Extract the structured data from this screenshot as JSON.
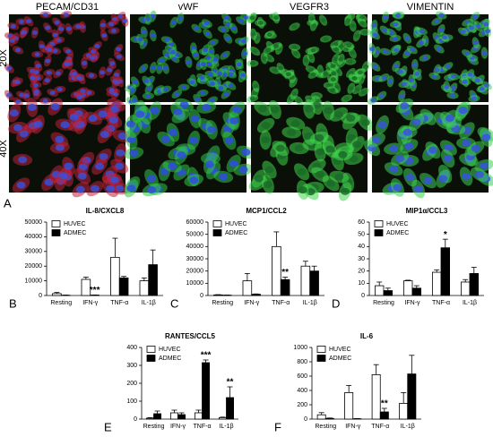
{
  "panel_a": {
    "letter": "A",
    "columns": [
      "PECAM/CD31",
      "vWF",
      "VEGFR3",
      "VIMENTIN"
    ],
    "rows": [
      "20X",
      "40X"
    ]
  },
  "chart_data": [
    {
      "type": "bar",
      "panel": "B",
      "title": "IL-8/CXCL8",
      "categories": [
        "Resting",
        "IFN-γ",
        "TNF-α",
        "IL-1β"
      ],
      "series": [
        {
          "name": "HUVEC",
          "color": "#ffffff",
          "values": [
            1300,
            11000,
            26000,
            10000
          ],
          "errors": [
            800,
            1500,
            13000,
            2000
          ]
        },
        {
          "name": "ADMEC",
          "color": "#000000",
          "values": [
            200,
            300,
            12000,
            21000
          ],
          "errors": [
            100,
            100,
            1000,
            10000
          ]
        }
      ],
      "ylim": [
        0,
        50000
      ],
      "yticks": [
        0,
        10000,
        20000,
        30000,
        40000,
        50000
      ],
      "annotations": [
        {
          "text": "***",
          "series": "ADMEC",
          "category": "IFN-γ"
        }
      ]
    },
    {
      "type": "bar",
      "panel": "C",
      "title": "MCP1/CCL2",
      "categories": [
        "Resting",
        "IFN-γ",
        "TNF-α",
        "IL-1β"
      ],
      "series": [
        {
          "name": "HUVEC",
          "color": "#ffffff",
          "values": [
            500,
            12000,
            40000,
            24000
          ],
          "errors": [
            200,
            6000,
            12000,
            4000
          ]
        },
        {
          "name": "ADMEC",
          "color": "#000000",
          "values": [
            300,
            1000,
            13000,
            20000
          ],
          "errors": [
            100,
            300,
            2000,
            4000
          ]
        }
      ],
      "ylim": [
        0,
        60000
      ],
      "yticks": [
        0,
        10000,
        20000,
        30000,
        40000,
        50000,
        60000
      ],
      "annotations": [
        {
          "text": "**",
          "series": "ADMEC",
          "category": "TNF-α"
        }
      ]
    },
    {
      "type": "bar",
      "panel": "D",
      "title": "MIP1α/CCL3",
      "categories": [
        "Resting",
        "IFN-γ",
        "TNF-α",
        "IL-1β"
      ],
      "series": [
        {
          "name": "HUVEC",
          "color": "#ffffff",
          "values": [
            8,
            12,
            19,
            11
          ],
          "errors": [
            3,
            0.5,
            2,
            2
          ]
        },
        {
          "name": "ADMEC",
          "color": "#000000",
          "values": [
            4,
            6,
            39,
            18
          ],
          "errors": [
            2,
            2,
            7,
            5
          ]
        }
      ],
      "ylim": [
        0,
        60
      ],
      "yticks": [
        0,
        10,
        20,
        30,
        40,
        50,
        60
      ],
      "annotations": [
        {
          "text": "*",
          "series": "ADMEC",
          "category": "TNF-α"
        }
      ]
    },
    {
      "type": "bar",
      "panel": "E",
      "title": "RANTES/CCL5",
      "categories": [
        "Resting",
        "IFN-γ",
        "TNF-α",
        "IL-1β"
      ],
      "series": [
        {
          "name": "HUVEC",
          "color": "#ffffff",
          "values": [
            5,
            35,
            35,
            8
          ],
          "errors": [
            3,
            15,
            15,
            3
          ]
        },
        {
          "name": "ADMEC",
          "color": "#000000",
          "values": [
            30,
            25,
            315,
            120
          ],
          "errors": [
            15,
            10,
            15,
            60
          ]
        }
      ],
      "ylim": [
        0,
        400
      ],
      "yticks": [
        0,
        100,
        200,
        300,
        400
      ],
      "annotations": [
        {
          "text": "***",
          "series": "ADMEC",
          "category": "TNF-α"
        },
        {
          "text": "**",
          "series": "ADMEC",
          "category": "IL-1β"
        }
      ]
    },
    {
      "type": "bar",
      "panel": "F",
      "title": "IL-6",
      "categories": [
        "Resting",
        "IFN-γ",
        "TNF-α",
        "IL-1β"
      ],
      "series": [
        {
          "name": "HUVEC",
          "color": "#ffffff",
          "values": [
            60,
            370,
            620,
            220
          ],
          "errors": [
            30,
            100,
            140,
            150
          ]
        },
        {
          "name": "ADMEC",
          "color": "#000000",
          "values": [
            10,
            5,
            100,
            630
          ],
          "errors": [
            5,
            3,
            50,
            260
          ]
        }
      ],
      "ylim": [
        0,
        1000
      ],
      "yticks": [
        0,
        200,
        400,
        600,
        800,
        1000
      ],
      "annotations": [
        {
          "text": "**",
          "series": "ADMEC",
          "category": "TNF-α"
        }
      ]
    }
  ]
}
